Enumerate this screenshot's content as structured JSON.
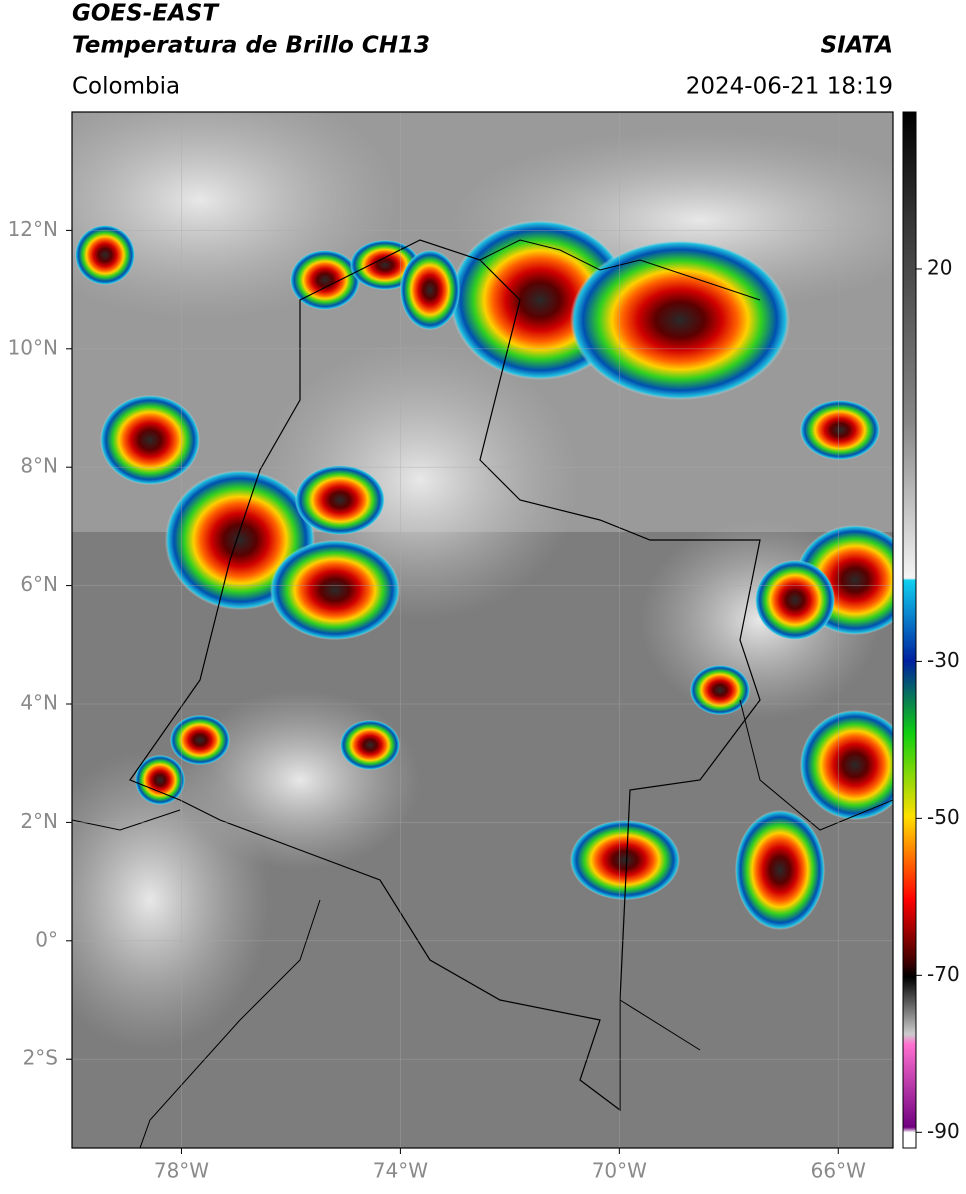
{
  "header": {
    "title": "GOES-EAST",
    "subtitle": "Temperatura de Brillo CH13",
    "source": "SIATA",
    "region": "Colombia",
    "datetime": "2024-06-21 18:19"
  },
  "map": {
    "lon_range": [
      -80,
      -65
    ],
    "lat_range": [
      -3.5,
      14
    ],
    "lon_ticks": [
      {
        "value": -78,
        "label": "78°W"
      },
      {
        "value": -74,
        "label": "74°W"
      },
      {
        "value": -70,
        "label": "70°W"
      },
      {
        "value": -66,
        "label": "66°W"
      }
    ],
    "lat_ticks": [
      {
        "value": 12,
        "label": "12°N"
      },
      {
        "value": 10,
        "label": "10°N"
      },
      {
        "value": 8,
        "label": "8°N"
      },
      {
        "value": 6,
        "label": "6°N"
      },
      {
        "value": 4,
        "label": "4°N"
      },
      {
        "value": 2,
        "label": "2°N"
      },
      {
        "value": 0,
        "label": "0°"
      },
      {
        "value": -2,
        "label": "2°S"
      }
    ]
  },
  "colorbar": {
    "range": [
      -92,
      40
    ],
    "ticks": [
      20,
      -30,
      -50,
      -70,
      -90
    ]
  }
}
